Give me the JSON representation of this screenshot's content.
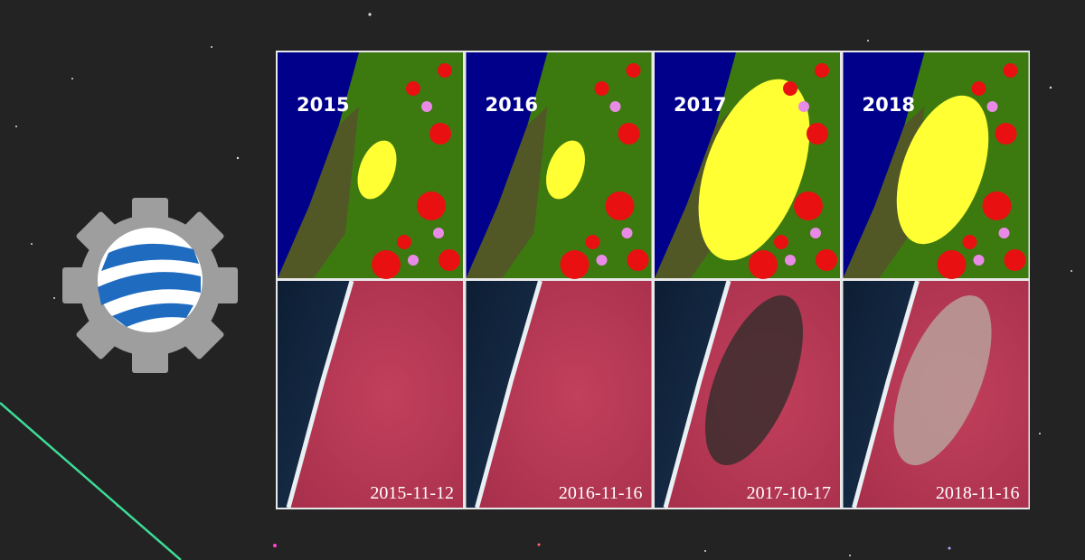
{
  "panels": [
    {
      "year": "2015",
      "date": "2015-11-12"
    },
    {
      "year": "2016",
      "date": "2016-11-16"
    },
    {
      "year": "2017",
      "date": "2017-10-17"
    },
    {
      "year": "2018",
      "date": "2018-11-16"
    }
  ]
}
